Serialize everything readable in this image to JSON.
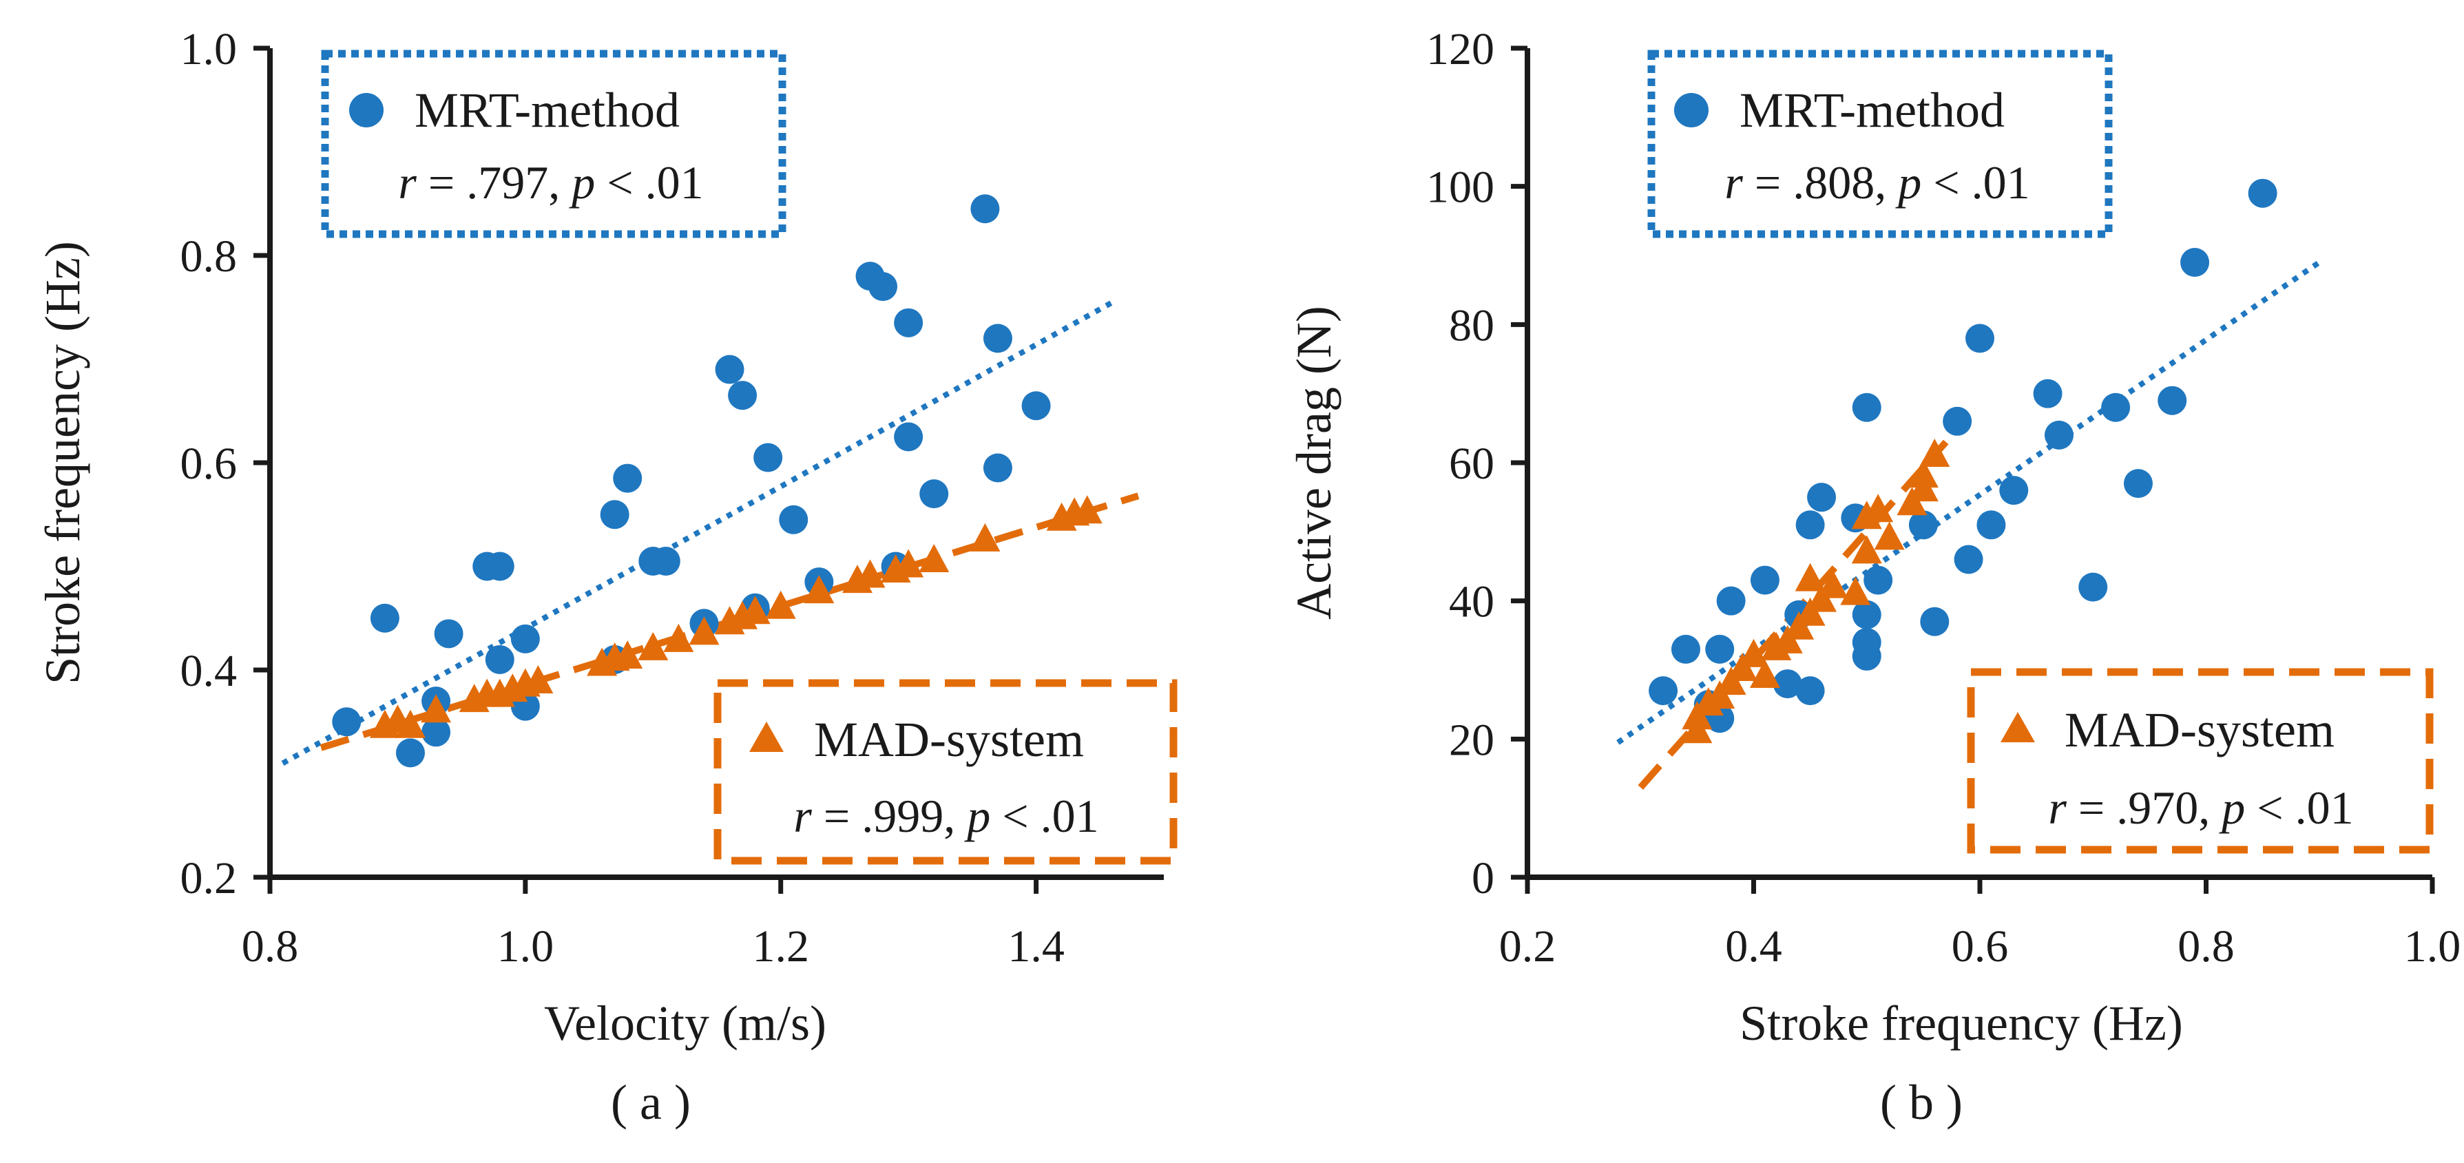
{
  "colors": {
    "mrt": "#1f77c0",
    "mad": "#e36c0a",
    "axis": "#1a1a1a"
  },
  "chart_data": [
    {
      "type": "scatter",
      "caption": "( a )",
      "xlabel": "Velocity (m/s)",
      "ylabel": "Stroke frequency (Hz)",
      "xlim": [
        0.8,
        1.5
      ],
      "ylim": [
        0.2,
        1.0
      ],
      "xticks": [
        "0.8",
        "1.0",
        "1.2",
        "1.4"
      ],
      "yticks": [
        "0.2",
        "0.4",
        "0.6",
        "0.8",
        "1.0"
      ],
      "series": [
        {
          "name": "MRT-method",
          "marker": "circle",
          "trend": "dotted",
          "stat_r": ".797",
          "stat_p": ".01",
          "trendline": [
            [
              0.81,
              0.31
            ],
            [
              1.46,
              0.755
            ]
          ],
          "points": [
            [
              0.86,
              0.35
            ],
            [
              0.89,
              0.45
            ],
            [
              0.91,
              0.32
            ],
            [
              0.93,
              0.34
            ],
            [
              0.93,
              0.37
            ],
            [
              0.94,
              0.435
            ],
            [
              0.97,
              0.5
            ],
            [
              0.98,
              0.5
            ],
            [
              0.98,
              0.41
            ],
            [
              1.0,
              0.43
            ],
            [
              1.0,
              0.365
            ],
            [
              1.07,
              0.41
            ],
            [
              1.07,
              0.55
            ],
            [
              1.08,
              0.585
            ],
            [
              1.1,
              0.505
            ],
            [
              1.11,
              0.505
            ],
            [
              1.14,
              0.445
            ],
            [
              1.16,
              0.69
            ],
            [
              1.17,
              0.665
            ],
            [
              1.18,
              0.46
            ],
            [
              1.19,
              0.605
            ],
            [
              1.21,
              0.545
            ],
            [
              1.23,
              0.485
            ],
            [
              1.27,
              0.78
            ],
            [
              1.28,
              0.77
            ],
            [
              1.29,
              0.5
            ],
            [
              1.3,
              0.735
            ],
            [
              1.3,
              0.625
            ],
            [
              1.32,
              0.57
            ],
            [
              1.36,
              0.845
            ],
            [
              1.37,
              0.72
            ],
            [
              1.37,
              0.595
            ],
            [
              1.4,
              0.655
            ]
          ]
        },
        {
          "name": "MAD-system",
          "marker": "triangle",
          "trend": "dashed",
          "stat_r": ".999",
          "stat_p": ".01",
          "trendline": [
            [
              0.84,
              0.325
            ],
            [
              1.48,
              0.568
            ]
          ],
          "points": [
            [
              0.89,
              0.345
            ],
            [
              0.9,
              0.35
            ],
            [
              0.91,
              0.345
            ],
            [
              0.93,
              0.36
            ],
            [
              0.96,
              0.37
            ],
            [
              0.97,
              0.375
            ],
            [
              0.98,
              0.375
            ],
            [
              0.99,
              0.38
            ],
            [
              1.0,
              0.385
            ],
            [
              1.01,
              0.388
            ],
            [
              1.06,
              0.405
            ],
            [
              1.07,
              0.41
            ],
            [
              1.08,
              0.412
            ],
            [
              1.1,
              0.42
            ],
            [
              1.12,
              0.428
            ],
            [
              1.14,
              0.435
            ],
            [
              1.16,
              0.445
            ],
            [
              1.17,
              0.45
            ],
            [
              1.18,
              0.455
            ],
            [
              1.2,
              0.46
            ],
            [
              1.23,
              0.475
            ],
            [
              1.26,
              0.485
            ],
            [
              1.27,
              0.49
            ],
            [
              1.29,
              0.495
            ],
            [
              1.3,
              0.5
            ],
            [
              1.32,
              0.505
            ],
            [
              1.36,
              0.525
            ],
            [
              1.42,
              0.545
            ],
            [
              1.43,
              0.55
            ],
            [
              1.44,
              0.552
            ]
          ]
        }
      ]
    },
    {
      "type": "scatter",
      "caption": "( b )",
      "xlabel": "Stroke frequency (Hz)",
      "ylabel": "Active drag (N)",
      "xlim": [
        0.2,
        1.0
      ],
      "ylim": [
        0,
        120
      ],
      "xticks": [
        "0.2",
        "0.4",
        "0.6",
        "0.8",
        "1.0"
      ],
      "yticks": [
        "0",
        "20",
        "40",
        "60",
        "80",
        "100",
        "120"
      ],
      "series": [
        {
          "name": "MRT-method",
          "marker": "circle",
          "trend": "dotted",
          "stat_r": ".808",
          "stat_p": ".01",
          "trendline": [
            [
              0.28,
              19.5
            ],
            [
              0.9,
              89
            ]
          ],
          "points": [
            [
              0.32,
              27
            ],
            [
              0.34,
              33
            ],
            [
              0.36,
              25
            ],
            [
              0.37,
              33
            ],
            [
              0.37,
              23
            ],
            [
              0.38,
              40
            ],
            [
              0.41,
              43
            ],
            [
              0.43,
              28
            ],
            [
              0.44,
              38
            ],
            [
              0.45,
              51
            ],
            [
              0.45,
              27
            ],
            [
              0.46,
              55
            ],
            [
              0.49,
              52
            ],
            [
              0.5,
              68
            ],
            [
              0.5,
              38
            ],
            [
              0.5,
              34
            ],
            [
              0.5,
              32
            ],
            [
              0.51,
              43
            ],
            [
              0.55,
              51
            ],
            [
              0.56,
              37
            ],
            [
              0.58,
              66
            ],
            [
              0.59,
              46
            ],
            [
              0.6,
              78
            ],
            [
              0.61,
              51
            ],
            [
              0.63,
              56
            ],
            [
              0.66,
              70
            ],
            [
              0.67,
              64
            ],
            [
              0.7,
              42
            ],
            [
              0.72,
              68
            ],
            [
              0.74,
              57
            ],
            [
              0.77,
              69
            ],
            [
              0.79,
              89
            ],
            [
              0.85,
              99
            ]
          ]
        },
        {
          "name": "MAD-system",
          "marker": "triangle",
          "trend": "dashed",
          "stat_r": ".970",
          "stat_p": ".01",
          "trendline": [
            [
              0.3,
              13
            ],
            [
              0.57,
              63
            ]
          ],
          "points": [
            [
              0.35,
              21
            ],
            [
              0.35,
              23
            ],
            [
              0.36,
              25
            ],
            [
              0.37,
              26
            ],
            [
              0.38,
              28
            ],
            [
              0.39,
              30
            ],
            [
              0.4,
              32
            ],
            [
              0.41,
              29
            ],
            [
              0.42,
              33
            ],
            [
              0.43,
              34
            ],
            [
              0.44,
              36
            ],
            [
              0.45,
              38
            ],
            [
              0.45,
              43
            ],
            [
              0.46,
              40
            ],
            [
              0.47,
              42
            ],
            [
              0.49,
              41
            ],
            [
              0.5,
              52
            ],
            [
              0.5,
              47
            ],
            [
              0.51,
              53
            ],
            [
              0.52,
              49
            ],
            [
              0.54,
              54
            ],
            [
              0.55,
              56
            ],
            [
              0.55,
              58
            ],
            [
              0.56,
              61
            ]
          ]
        }
      ]
    }
  ]
}
